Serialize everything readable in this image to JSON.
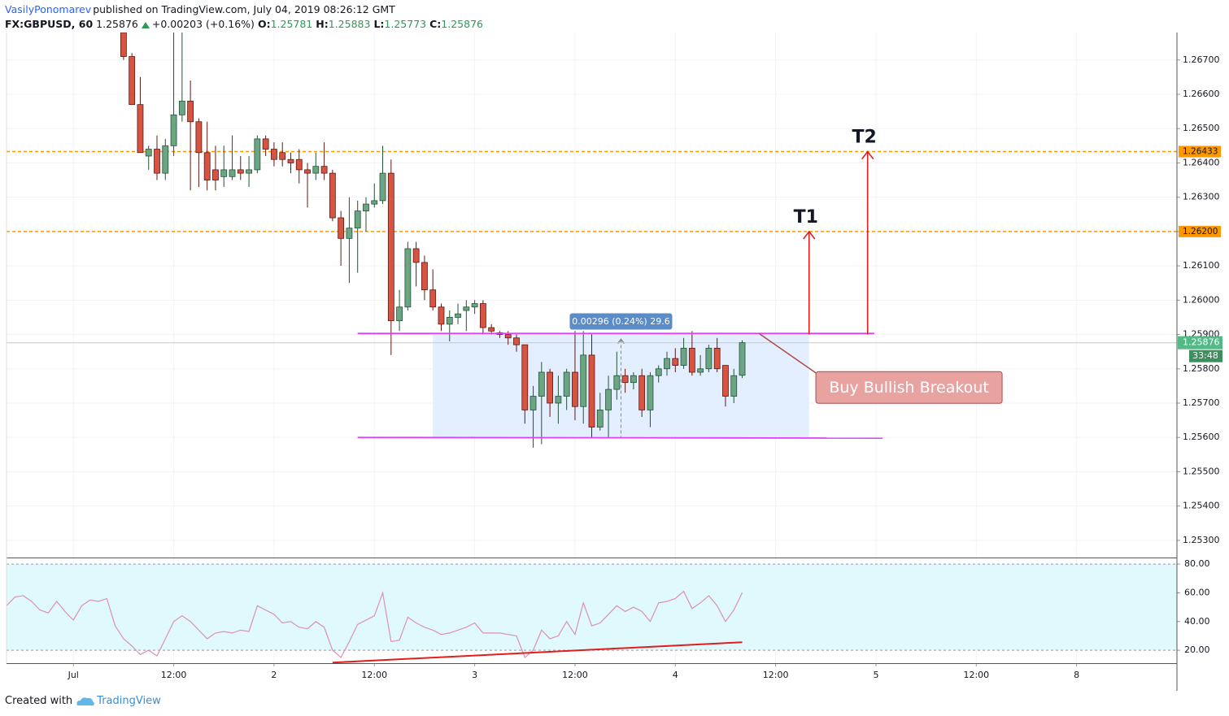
{
  "header": {
    "author": "VasilyPonomarev",
    "published": "published on TradingView.com, July 04, 2019 08:26:12 GMT",
    "symbol": "FX:GBPUSD, 60",
    "last": "1.25876",
    "change": "+0.00203 (+0.16%)",
    "ohlc": [
      {
        "key": "O:",
        "value": "1.25781"
      },
      {
        "key": "H:",
        "value": "1.25883"
      },
      {
        "key": "L:",
        "value": "1.25773"
      },
      {
        "key": "C:",
        "value": "1.25876"
      }
    ]
  },
  "footer": {
    "created": "Created with",
    "brand": "TradingView"
  },
  "chart_data": [
    {
      "type": "candlestick",
      "x": [
        6,
        7,
        8,
        9,
        10,
        11,
        12,
        13,
        14,
        15,
        16,
        17,
        18,
        19,
        20,
        21,
        22,
        23,
        24,
        25,
        26,
        27,
        28,
        29,
        30,
        31,
        32,
        33,
        34,
        35,
        36,
        37,
        38,
        39,
        40,
        41,
        42,
        43,
        44,
        45,
        46,
        47,
        48,
        49,
        50,
        51,
        52,
        53,
        54,
        55,
        56,
        57,
        58,
        59,
        60,
        61,
        62,
        63,
        64,
        65,
        66,
        67,
        68,
        69,
        70,
        71,
        72,
        73,
        74,
        75,
        76,
        77,
        78,
        79,
        80
      ],
      "open": [
        1.2678,
        1.2671,
        1.2657,
        1.2642,
        1.2644,
        1.2637,
        1.2645,
        1.2654,
        1.2658,
        1.2652,
        1.2643,
        1.2638,
        1.2636,
        1.2636,
        1.2638,
        1.2637,
        1.2638,
        1.2647,
        1.2644,
        1.2643,
        1.2641,
        1.2641,
        1.2638,
        1.2637,
        1.2639,
        1.2637,
        1.2624,
        1.2618,
        1.2621,
        1.2626,
        1.2628,
        1.2629,
        1.2637,
        1.2594,
        1.2598,
        1.2615,
        1.2611,
        1.2603,
        1.2598,
        1.2593,
        1.2595,
        1.2597,
        1.2598,
        1.2599,
        1.2592,
        1.25905,
        1.259,
        1.2589,
        1.2587,
        1.2568,
        1.2572,
        1.2579,
        1.257,
        1.2572,
        1.2579,
        1.2569,
        1.2584,
        1.2563,
        1.2568,
        1.2574,
        1.2578,
        1.2576,
        1.2578,
        1.2568,
        1.2578,
        1.258,
        1.2583,
        1.2581,
        1.2586,
        1.2579,
        1.258,
        1.2586,
        1.2581,
        1.2572,
        1.25781
      ],
      "high": [
        1.268,
        1.2672,
        1.2665,
        1.2645,
        1.2648,
        1.2647,
        1.2689,
        1.2686,
        1.2664,
        1.2653,
        1.2652,
        1.2645,
        1.2645,
        1.2648,
        1.2642,
        1.2642,
        1.2648,
        1.2648,
        1.2646,
        1.2646,
        1.2643,
        1.2644,
        1.264,
        1.2643,
        1.2646,
        1.2638,
        1.2626,
        1.263,
        1.2629,
        1.263,
        1.2634,
        1.2645,
        1.2641,
        1.2603,
        1.2617,
        1.2617,
        1.2613,
        1.2609,
        1.2599,
        1.2597,
        1.2599,
        1.26,
        1.26,
        1.26,
        1.2593,
        1.2591,
        1.2591,
        1.259,
        1.2587,
        1.2575,
        1.2582,
        1.258,
        1.2578,
        1.258,
        1.2591,
        1.2591,
        1.259,
        1.2573,
        1.2578,
        1.2585,
        1.258,
        1.2579,
        1.258,
        1.2579,
        1.2581,
        1.2585,
        1.2586,
        1.2589,
        1.2591,
        1.2584,
        1.2587,
        1.2589,
        1.2581,
        1.258,
        1.25883
      ],
      "low": [
        1.267,
        1.2657,
        1.2643,
        1.2638,
        1.2635,
        1.2635,
        1.2642,
        1.2652,
        1.2632,
        1.2633,
        1.2632,
        1.2632,
        1.2633,
        1.2635,
        1.2635,
        1.2633,
        1.2637,
        1.2642,
        1.2639,
        1.2639,
        1.2637,
        1.2634,
        1.2627,
        1.2635,
        1.2635,
        1.2623,
        1.261,
        1.2605,
        1.2608,
        1.262,
        1.2627,
        1.2628,
        1.2584,
        1.2591,
        1.2597,
        1.2604,
        1.26,
        1.2597,
        1.2591,
        1.2588,
        1.2593,
        1.2591,
        1.2596,
        1.259,
        1.259,
        1.2589,
        1.2587,
        1.2585,
        1.2564,
        1.2557,
        1.2558,
        1.2566,
        1.2564,
        1.2568,
        1.2565,
        1.2564,
        1.256,
        1.2562,
        1.256,
        1.2571,
        1.2573,
        1.2574,
        1.2566,
        1.2563,
        1.2576,
        1.2578,
        1.2579,
        1.258,
        1.2578,
        1.2578,
        1.2579,
        1.2579,
        1.2569,
        1.257,
        1.25773
      ],
      "close": [
        1.2671,
        1.2657,
        1.2643,
        1.2644,
        1.2637,
        1.2645,
        1.2654,
        1.2658,
        1.2652,
        1.2643,
        1.2635,
        1.2635,
        1.2638,
        1.2638,
        1.2637,
        1.2638,
        1.2647,
        1.2644,
        1.2641,
        1.2641,
        1.264,
        1.2638,
        1.2637,
        1.2639,
        1.2637,
        1.2624,
        1.2618,
        1.2621,
        1.2626,
        1.2628,
        1.2629,
        1.2637,
        1.2594,
        1.2598,
        1.2615,
        1.2611,
        1.2603,
        1.2598,
        1.2593,
        1.2595,
        1.2596,
        1.2598,
        1.2599,
        1.2592,
        1.2591,
        1.259,
        1.2589,
        1.2587,
        1.2568,
        1.2572,
        1.2579,
        1.257,
        1.2572,
        1.2579,
        1.2569,
        1.2584,
        1.2563,
        1.2568,
        1.2574,
        1.2578,
        1.2576,
        1.2578,
        1.2568,
        1.2578,
        1.258,
        1.2583,
        1.2581,
        1.2586,
        1.2579,
        1.258,
        1.2586,
        1.258,
        1.2572,
        1.2578,
        1.25876
      ],
      "up_color": "#6ba583",
      "down_color": "#d75442",
      "up_border": "#225437",
      "down_border": "#5b1a13",
      "xlim": [
        -8,
        132
      ],
      "xticks": [
        {
          "value": 0,
          "label": "Jul"
        },
        {
          "value": 12,
          "label": "12:00"
        },
        {
          "value": 24,
          "label": "2"
        },
        {
          "value": 36,
          "label": "12:00"
        },
        {
          "value": 48,
          "label": "3"
        },
        {
          "value": 60,
          "label": "12:00"
        },
        {
          "value": 72,
          "label": "4"
        },
        {
          "value": 84,
          "label": "12:00"
        },
        {
          "value": 96,
          "label": "5"
        },
        {
          "value": 108,
          "label": "12:00"
        },
        {
          "value": 120,
          "label": "8"
        }
      ],
      "ylim": [
        1.2525,
        1.2678
      ],
      "yticks": [
        {
          "value": 1.253,
          "label": "1.25300"
        },
        {
          "value": 1.254,
          "label": "1.25400"
        },
        {
          "value": 1.255,
          "label": "1.25500"
        },
        {
          "value": 1.256,
          "label": "1.25600"
        },
        {
          "value": 1.257,
          "label": "1.25700"
        },
        {
          "value": 1.258,
          "label": "1.25800"
        },
        {
          "value": 1.259,
          "label": "1.25900"
        },
        {
          "value": 1.26,
          "label": "1.26000"
        },
        {
          "value": 1.261,
          "label": "1.26100"
        },
        {
          "value": 1.262,
          "label": "1.26200"
        },
        {
          "value": 1.263,
          "label": "1.26300"
        },
        {
          "value": 1.264,
          "label": "1.26400"
        },
        {
          "value": 1.265,
          "label": "1.26500"
        },
        {
          "value": 1.266,
          "label": "1.26600"
        },
        {
          "value": 1.267,
          "label": "1.26700"
        }
      ],
      "grid": true,
      "last_price": {
        "value": 1.25876,
        "label": "1.25876",
        "countdown": "33:48",
        "color": "#53b987"
      },
      "levels": [
        {
          "value": 1.26433,
          "label": "1.26433",
          "color": "#ff9800"
        },
        {
          "value": 1.262,
          "label": "1.26200",
          "color": "#ff9800"
        }
      ],
      "trend_lines": [
        {
          "x": [
            34,
            95.8
          ],
          "y": [
            1.25903,
            1.25903
          ],
          "color": "#e040fb"
        },
        {
          "x": [
            34,
            96.8
          ],
          "y": [
            1.256,
            1.25598
          ],
          "color": "#e040fb"
        }
      ],
      "range_box": {
        "x": [
          43,
          88
        ],
        "y": [
          1.256,
          1.259
        ],
        "label": "0.00296 (0.24%) 29.6",
        "color": "#5b8cc7"
      },
      "targets": [
        {
          "label": "T1",
          "x": 88,
          "from": 1.259,
          "to": 1.262
        },
        {
          "label": "T2",
          "x": 95,
          "from": 1.259,
          "to": 1.26433
        }
      ],
      "target_color": "#e01e1e",
      "callout": {
        "text": "Buy Bullish Breakout",
        "x": 82,
        "y": 1.25903
      }
    },
    {
      "type": "line",
      "x": [
        -8,
        -7,
        -6,
        -5,
        -4,
        -3,
        -2,
        -1,
        0,
        1,
        2,
        3,
        4,
        5,
        6,
        7,
        8,
        9,
        10,
        11,
        12,
        13,
        14,
        15,
        16,
        17,
        18,
        19,
        20,
        21,
        22,
        23,
        24,
        25,
        26,
        27,
        28,
        29,
        30,
        31,
        32,
        33,
        34,
        35,
        36,
        37,
        38,
        39,
        40,
        41,
        42,
        43,
        44,
        45,
        46,
        47,
        48,
        49,
        50,
        51,
        52,
        53,
        54,
        55,
        56,
        57,
        58,
        59,
        60,
        61,
        62,
        63,
        64,
        65,
        66,
        67,
        68,
        69,
        70,
        71,
        72,
        73,
        74,
        75,
        76,
        77,
        78,
        79,
        80
      ],
      "values": [
        51,
        57,
        58,
        54,
        48,
        46,
        54,
        47,
        41,
        51,
        55,
        54,
        56,
        37,
        28,
        23,
        17,
        20,
        16,
        28,
        40,
        44,
        40,
        34,
        28,
        32,
        33,
        32,
        34,
        33,
        51,
        48,
        45,
        39,
        40,
        36,
        35,
        40,
        36,
        20,
        15,
        26,
        38,
        41,
        44,
        60,
        26,
        27,
        43,
        39,
        36,
        34,
        31,
        32,
        34,
        36,
        39,
        32,
        32,
        32,
        31,
        30,
        15,
        20,
        34,
        28,
        30,
        40,
        31,
        53,
        37,
        39,
        45,
        51,
        47,
        50,
        47,
        40,
        53,
        54,
        56,
        61,
        49,
        53,
        58,
        51,
        40,
        48,
        60
      ],
      "color": "#dc8fb7",
      "xlim": [
        -8,
        132
      ],
      "ylim": [
        11,
        84
      ],
      "yticks": [
        {
          "value": 20,
          "label": "20.00"
        },
        {
          "value": 40,
          "label": "40.00"
        },
        {
          "value": 60,
          "label": "60.00"
        },
        {
          "value": 80,
          "label": "80.00"
        }
      ],
      "band": [
        20,
        80
      ],
      "band_color": "#e0f9fc",
      "trend_lines": [
        {
          "x": [
            31,
            80
          ],
          "y": [
            11.4,
            25.6
          ],
          "color": "#e01e1e"
        }
      ]
    }
  ]
}
